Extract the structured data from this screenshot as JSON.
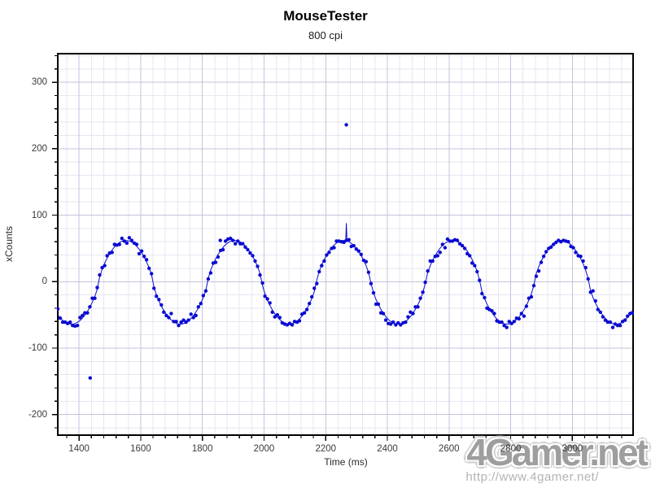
{
  "window": {
    "title": "MouseTester",
    "subtitle": "800 cpi"
  },
  "watermark": {
    "logo": "4Gamer.net",
    "url": "http://www.4gamer.net/"
  },
  "chart_data": {
    "type": "scatter",
    "title": "MouseTester",
    "subtitle": "800 cpi",
    "xlabel": "Time (ms)",
    "ylabel": "xCounts",
    "legend": "none",
    "grid": "on",
    "x_range": [
      1331,
      3197
    ],
    "y_range": [
      -231,
      343
    ],
    "x_ticks": {
      "major_start": 1400,
      "major_step": 200,
      "major_end": 3000,
      "minor_step": 40,
      "labels": [
        "1400",
        "1600",
        "1800",
        "2000",
        "2200",
        "2400",
        "2600",
        "2800",
        "3000"
      ]
    },
    "y_ticks": {
      "major_start": -200,
      "major_step": 100,
      "major_end": 300,
      "minor_step": 20,
      "labels": [
        "-200",
        "-100",
        "0",
        "100",
        "200",
        "300"
      ]
    },
    "colors": {
      "data": "#0a0ad2",
      "grid_minor": "#e6e6f2",
      "grid_major": "#c3c3de",
      "axis": "#000000",
      "tick_label": "#3a3a3a",
      "watermark": "#9e9e9e"
    },
    "series": [
      {
        "name": "xCounts",
        "sensor_cpi": 800,
        "model": {
          "kind": "noisy-sine",
          "mean": -1,
          "amplitude": 63,
          "period_ms": 353.2,
          "peak_ref_ms": 1552,
          "shape_exp": 0.72,
          "sample_ms": 8,
          "t_start": 1331,
          "t_end": 3196,
          "noise_sd": 3.1,
          "seed": 7
        },
        "peaks": [
          {
            "t": 1552,
            "v": 63
          },
          {
            "t": 1909,
            "v": 64
          },
          {
            "t": 2265,
            "v": 65
          },
          {
            "t": 2614,
            "v": 66
          },
          {
            "t": 2965,
            "v": 64
          }
        ],
        "troughs": [
          {
            "t": 1378,
            "v": -62
          },
          {
            "t": 1732,
            "v": -64
          },
          {
            "t": 2088,
            "v": -65
          },
          {
            "t": 2442,
            "v": -68
          },
          {
            "t": 2790,
            "v": -63
          },
          {
            "t": 3145,
            "v": -62
          }
        ],
        "outliers": [
          {
            "t": 1436,
            "v": -145
          },
          {
            "t": 2267,
            "v": 236
          }
        ],
        "strays": [
          {
            "t": 1858,
            "v": 62
          }
        ],
        "line_spike": {
          "t": 2267,
          "v": 88,
          "half_width_ms": 2
        }
      }
    ]
  }
}
